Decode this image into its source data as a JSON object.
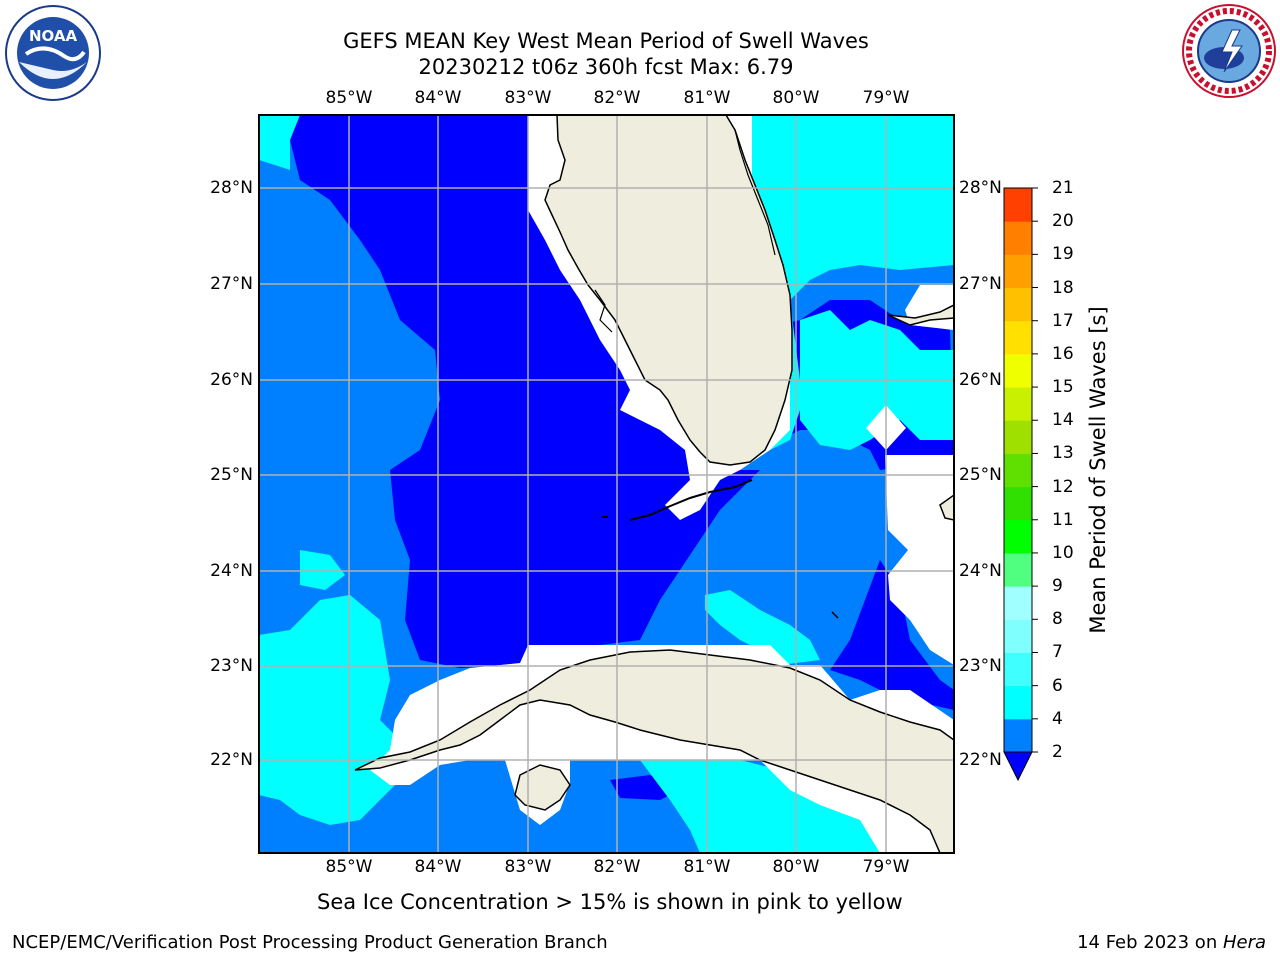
{
  "title": {
    "line1": "GEFS MEAN Key West Mean Period of Swell Waves",
    "line2": "20230212 t06z 360h fcst   Max: 6.79"
  },
  "logos": {
    "left": {
      "name": "NOAA",
      "text": "NOAA",
      "ring_text": "NATIONAL OCEANIC AND ATMOSPHERIC ADMINISTRATION · U.S. DEPARTMENT OF COMMERCE"
    },
    "right": {
      "name": "National Weather Service",
      "ring_text": "NATIONAL WEATHER SERVICE"
    }
  },
  "map": {
    "lon_ticks": [
      "85°W",
      "84°W",
      "83°W",
      "82°W",
      "81°W",
      "80°W",
      "79°W"
    ],
    "lat_ticks": [
      "28°N",
      "27°N",
      "26°N",
      "25°N",
      "24°N",
      "23°N",
      "22°N"
    ],
    "colors": {
      "land": "#eeedde",
      "missing": "#ffffff",
      "band_below_2": "#0000ff",
      "band_2_4": "#0080ff",
      "band_4_6": "#00ffff",
      "grid": "#b0b0b0",
      "coast": "#000000"
    }
  },
  "colorbar": {
    "label": "Mean Period of Swell Waves [s]",
    "ticks": [
      "2",
      "4",
      "6",
      "7",
      "8",
      "9",
      "10",
      "11",
      "12",
      "13",
      "14",
      "15",
      "16",
      "17",
      "18",
      "19",
      "20",
      "21"
    ],
    "colors": [
      "#0080ff",
      "#00ffff",
      "#40ffff",
      "#80ffff",
      "#a0ffff",
      "#50ff80",
      "#00ff00",
      "#30e000",
      "#60e000",
      "#a0e000",
      "#c8f000",
      "#f0ff00",
      "#ffe000",
      "#ffc000",
      "#ffa000",
      "#ff8000",
      "#ff4000",
      "#ff0000"
    ],
    "extend_color": "#0000ff"
  },
  "note": "Sea Ice Concentration > 15% is shown in pink to yellow",
  "footer": {
    "left": "NCEP/EMC/Verification Post Processing Product Generation Branch",
    "right_date": "14 Feb 2023 on ",
    "right_host": "Hera"
  }
}
